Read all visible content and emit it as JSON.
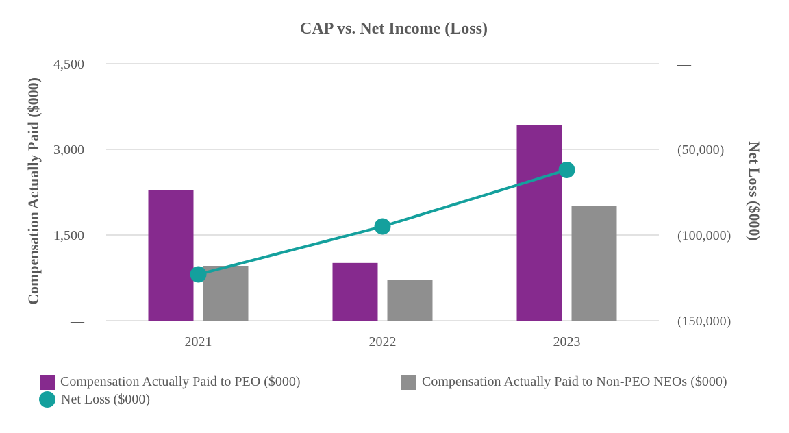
{
  "chart_data": {
    "type": "bar+line",
    "title": "CAP vs. Net Income (Loss)",
    "categories": [
      "2021",
      "2022",
      "2023"
    ],
    "y_left": {
      "label": "Compensation Actually Paid ($000)",
      "range": [
        0,
        4500
      ],
      "ticks": [
        0,
        1500,
        3000,
        4500
      ],
      "tick_labels": [
        "—",
        "1,500",
        "3,000",
        "4,500"
      ]
    },
    "y_right": {
      "label": "Net Loss ($000)",
      "range": [
        -150000,
        0
      ],
      "ticks": [
        0,
        -50000,
        -100000,
        -150000
      ],
      "tick_labels": [
        "—",
        "(50,000)",
        "(100,000)",
        "(150,000)"
      ]
    },
    "series": [
      {
        "name": "Compensation Actually Paid to PEO ($000)",
        "type": "bar",
        "axis": "left",
        "color": "#862a8e",
        "values": [
          2280,
          1010,
          3430
        ]
      },
      {
        "name": "Compensation Actually Paid to Non-PEO NEOs ($000)",
        "type": "bar",
        "axis": "left",
        "color": "#8f8f8f",
        "values": [
          960,
          720,
          2010
        ]
      },
      {
        "name": "Net Loss ($000)",
        "type": "line",
        "axis": "right",
        "color": "#14a09d",
        "values": [
          -123000,
          -95000,
          -62000
        ]
      }
    ],
    "grid": true,
    "legend_position": "bottom"
  }
}
